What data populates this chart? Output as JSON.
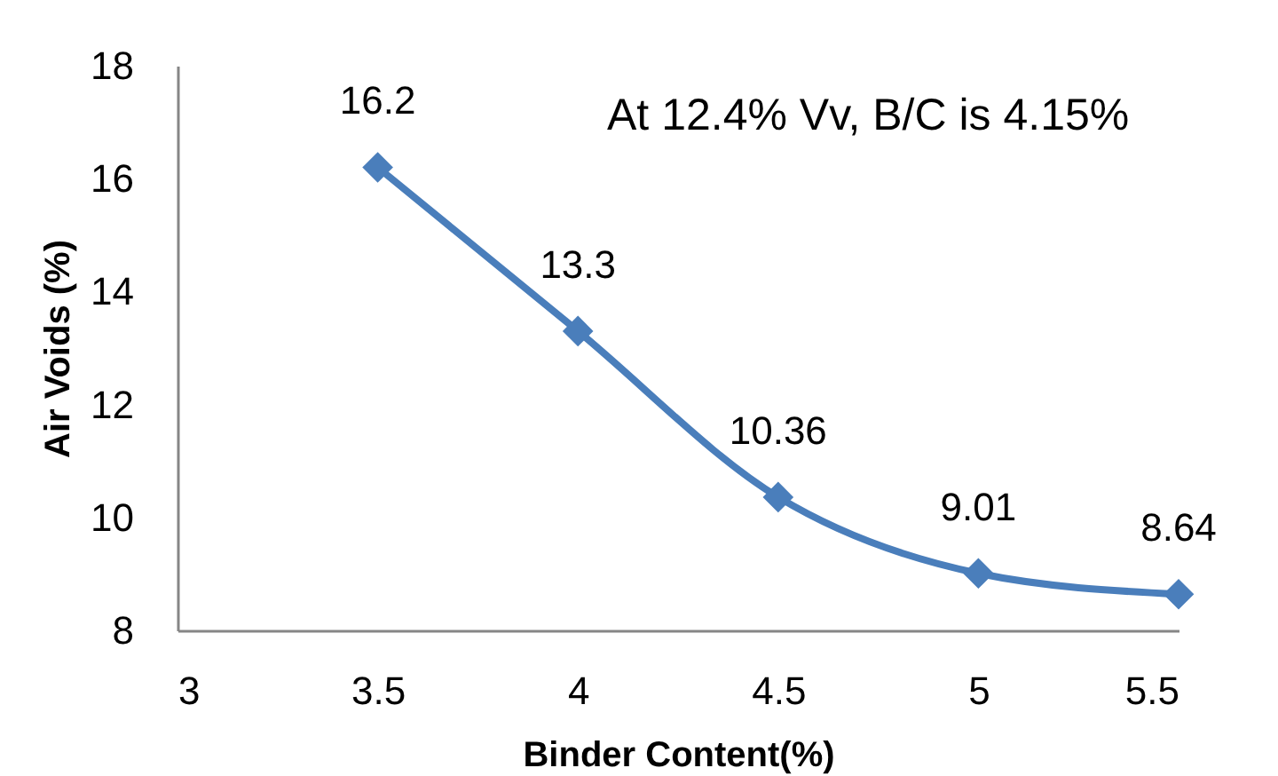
{
  "chart_data": {
    "type": "line",
    "xlabel": "Binder Content(%)",
    "ylabel": "Air Voids (%)",
    "x": [
      3.5,
      4,
      4.5,
      5,
      5.5
    ],
    "series": [
      {
        "color": "#4a7ebb",
        "values": [
          16.2,
          13.3,
          10.36,
          9.01,
          8.64
        ]
      }
    ],
    "xlim": [
      3,
      5.5
    ],
    "ylim": [
      8,
      18
    ],
    "xticks": [
      3,
      3.5,
      4,
      4.5,
      5,
      5.5
    ],
    "yticks": [
      8,
      10,
      12,
      14,
      16,
      18
    ],
    "annotations": [
      "At 12.4% Vv, B/C is 4.15%"
    ],
    "data_labels": true,
    "marker": "diamond",
    "line_style": "solid"
  }
}
